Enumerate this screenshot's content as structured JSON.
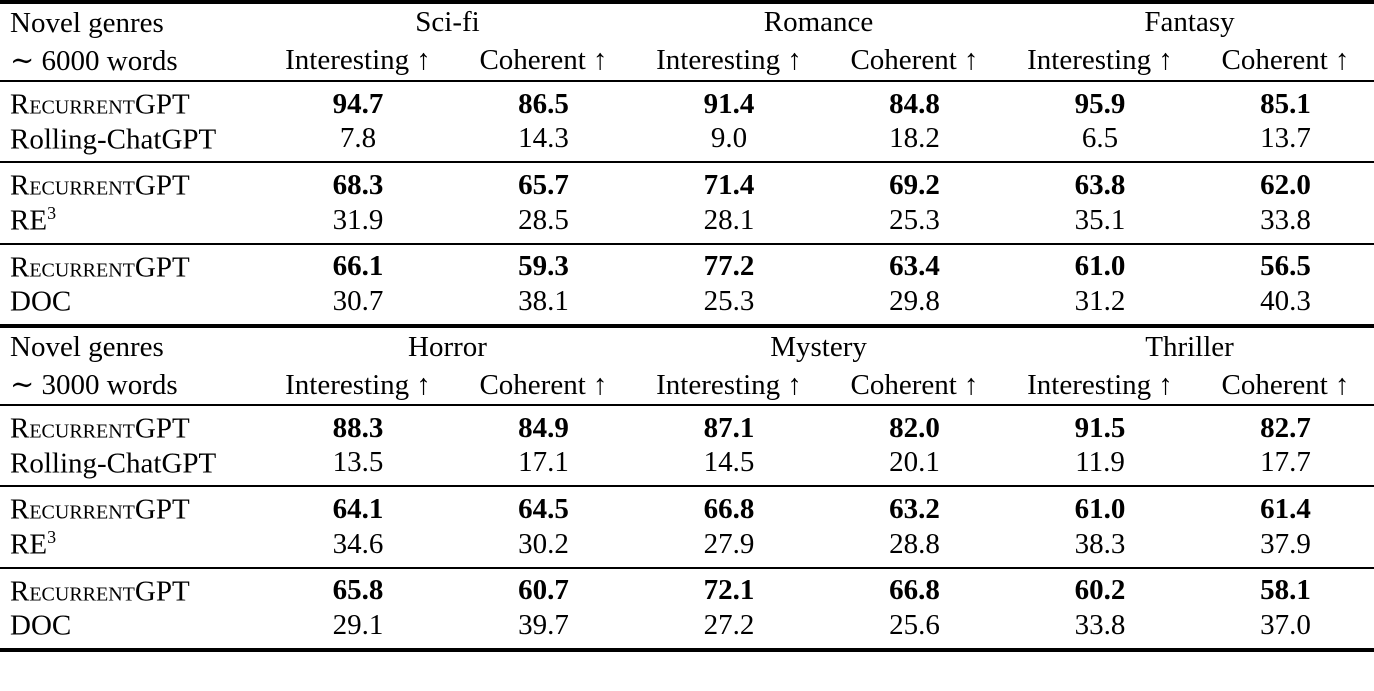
{
  "page": {
    "background": "#ffffff",
    "text_color": "#000000"
  },
  "table": {
    "sections": [
      {
        "stub": {
          "line1": "Novel genres",
          "line2": "∼ 6000 words"
        },
        "genres": [
          "Sci-fi",
          "Romance",
          "Fantasy"
        ],
        "metrics": [
          "Interesting ↑",
          "Coherent ↑",
          "Interesting ↑",
          "Coherent ↑",
          "Interesting ↑",
          "Coherent ↑"
        ],
        "groups": [
          {
            "rows": [
              {
                "label": "RecurrentGPT",
                "sup": "",
                "values": [
                  "94.7",
                  "86.5",
                  "91.4",
                  "84.8",
                  "95.9",
                  "85.1"
                ]
              },
              {
                "label": "Rolling-ChatGPT",
                "sup": "",
                "values": [
                  "7.8",
                  "14.3",
                  "9.0",
                  "18.2",
                  "6.5",
                  "13.7"
                ]
              }
            ]
          },
          {
            "rows": [
              {
                "label": "RecurrentGPT",
                "sup": "",
                "values": [
                  "68.3",
                  "65.7",
                  "71.4",
                  "69.2",
                  "63.8",
                  "62.0"
                ]
              },
              {
                "label": "RE",
                "sup": "3",
                "values": [
                  "31.9",
                  "28.5",
                  "28.1",
                  "25.3",
                  "35.1",
                  "33.8"
                ]
              }
            ]
          },
          {
            "rows": [
              {
                "label": "RecurrentGPT",
                "sup": "",
                "values": [
                  "66.1",
                  "59.3",
                  "77.2",
                  "63.4",
                  "61.0",
                  "56.5"
                ]
              },
              {
                "label": "DOC",
                "sup": "",
                "values": [
                  "30.7",
                  "38.1",
                  "25.3",
                  "29.8",
                  "31.2",
                  "40.3"
                ]
              }
            ]
          }
        ]
      },
      {
        "stub": {
          "line1": "Novel genres",
          "line2": "∼ 3000 words"
        },
        "genres": [
          "Horror",
          "Mystery",
          "Thriller"
        ],
        "metrics": [
          "Interesting ↑",
          "Coherent ↑",
          "Interesting ↑",
          "Coherent ↑",
          "Interesting ↑",
          "Coherent ↑"
        ],
        "groups": [
          {
            "rows": [
              {
                "label": "RecurrentGPT",
                "sup": "",
                "values": [
                  "88.3",
                  "84.9",
                  "87.1",
                  "82.0",
                  "91.5",
                  "82.7"
                ]
              },
              {
                "label": "Rolling-ChatGPT",
                "sup": "",
                "values": [
                  "13.5",
                  "17.1",
                  "14.5",
                  "20.1",
                  "11.9",
                  "17.7"
                ]
              }
            ]
          },
          {
            "rows": [
              {
                "label": "RecurrentGPT",
                "sup": "",
                "values": [
                  "64.1",
                  "64.5",
                  "66.8",
                  "63.2",
                  "61.0",
                  "61.4"
                ]
              },
              {
                "label": "RE",
                "sup": "3",
                "values": [
                  "34.6",
                  "30.2",
                  "27.9",
                  "28.8",
                  "38.3",
                  "37.9"
                ]
              }
            ]
          },
          {
            "rows": [
              {
                "label": "RecurrentGPT",
                "sup": "",
                "values": [
                  "65.8",
                  "60.7",
                  "72.1",
                  "66.8",
                  "60.2",
                  "58.1"
                ]
              },
              {
                "label": "DOC",
                "sup": "",
                "values": [
                  "29.1",
                  "39.7",
                  "27.2",
                  "25.6",
                  "33.8",
                  "37.0"
                ]
              }
            ]
          }
        ]
      }
    ]
  }
}
